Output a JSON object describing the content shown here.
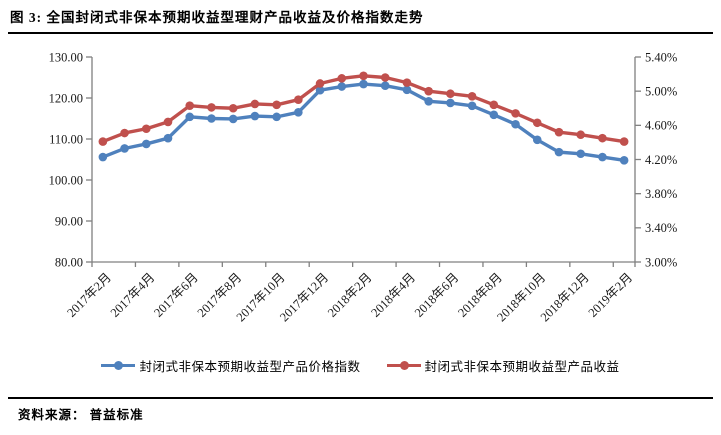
{
  "figure": {
    "title": "图 3: 全国封闭式非保本预期收益型理财产品收益及价格指数走势",
    "source_label": "资料来源： 普益标准"
  },
  "chart_data": {
    "type": "line",
    "title": "全国封闭式非保本预期收益型理财产品收益及价格指数走势",
    "grid": false,
    "legend_position": "bottom",
    "categories": [
      "2017年2月",
      "2017年3月",
      "2017年4月",
      "2017年5月",
      "2017年6月",
      "2017年7月",
      "2017年8月",
      "2017年9月",
      "2017年10月",
      "2017年11月",
      "2017年12月",
      "2018年1月",
      "2018年2月",
      "2018年3月",
      "2018年4月",
      "2018年5月",
      "2018年6月",
      "2018年7月",
      "2018年8月",
      "2018年9月",
      "2018年10月",
      "2018年11月",
      "2018年12月",
      "2019年1月",
      "2019年2月"
    ],
    "x_tick_labels": [
      "2017年2月",
      "2017年4月",
      "2017年6月",
      "2017年8月",
      "2017年10月",
      "2017年12月",
      "2018年2月",
      "2018年4月",
      "2018年6月",
      "2018年8月",
      "2018年10月",
      "2018年12月",
      "2019年2月"
    ],
    "left_axis": {
      "min": 80,
      "max": 130,
      "tick_labels": [
        "130.00",
        "120.00",
        "110.00",
        "100.00",
        "90.00",
        "80.00"
      ]
    },
    "right_axis": {
      "min": 3.0,
      "max": 5.4,
      "tick_labels": [
        "5.40%",
        "5.00%",
        "4.60%",
        "4.20%",
        "3.80%",
        "3.40%",
        "3.00%"
      ]
    },
    "series": [
      {
        "name": "封闭式非保本预期收益型产品价格指数",
        "axis": "left",
        "color": "#4F81BD",
        "values": [
          105.6,
          107.7,
          108.8,
          110.2,
          115.4,
          115.0,
          114.9,
          115.6,
          115.4,
          116.5,
          121.9,
          122.8,
          123.4,
          123.0,
          122.0,
          119.2,
          118.8,
          118.1,
          115.9,
          113.6,
          109.8,
          106.8,
          106.4,
          105.6,
          104.8
        ]
      },
      {
        "name": "封闭式非保本预期收益型产品收益",
        "axis": "right",
        "color": "#C0504D",
        "values": [
          4.41,
          4.51,
          4.56,
          4.64,
          4.83,
          4.81,
          4.8,
          4.85,
          4.84,
          4.9,
          5.09,
          5.15,
          5.18,
          5.16,
          5.1,
          5.0,
          4.97,
          4.94,
          4.84,
          4.74,
          4.63,
          4.52,
          4.49,
          4.45,
          4.41
        ]
      }
    ],
    "axis_color": "#808080",
    "label_color": "#1a1a1a"
  }
}
